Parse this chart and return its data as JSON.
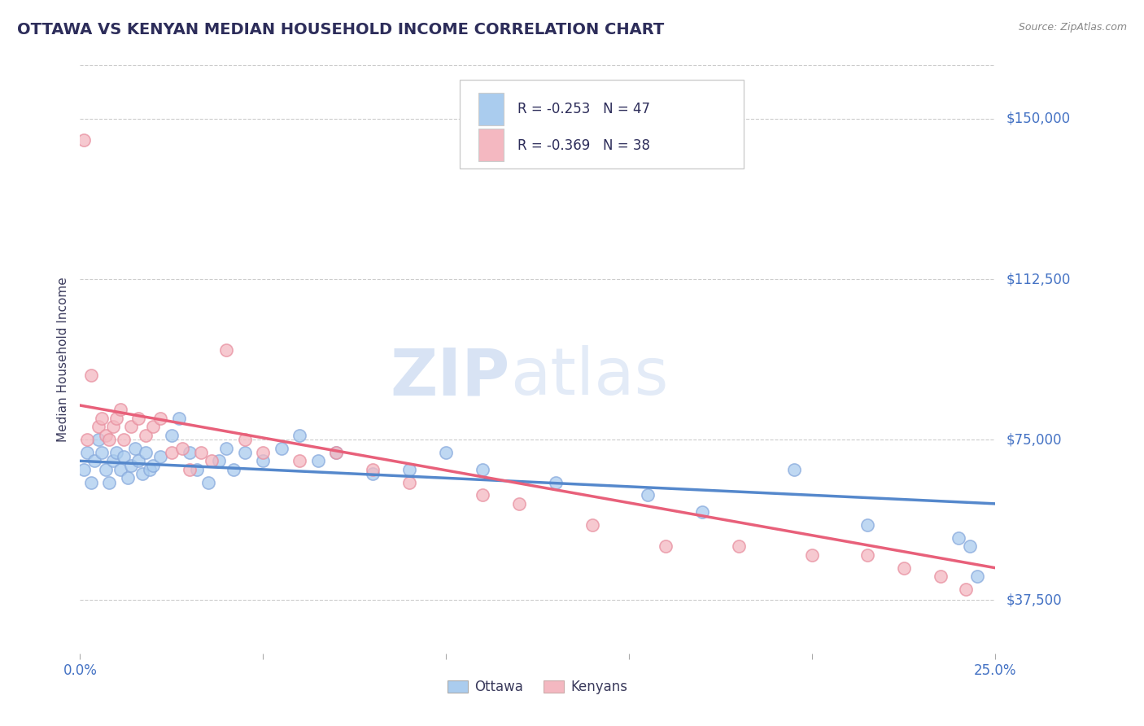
{
  "title": "OTTAWA VS KENYAN MEDIAN HOUSEHOLD INCOME CORRELATION CHART",
  "source": "Source: ZipAtlas.com",
  "ylabel": "Median Household Income",
  "xlim": [
    0.0,
    0.25
  ],
  "ylim": [
    25000,
    162500
  ],
  "ytick_positions": [
    37500,
    75000,
    112500,
    150000
  ],
  "ytick_labels": [
    "$37,500",
    "$75,000",
    "$112,500",
    "$150,000"
  ],
  "ottawa_color": "#aaccee",
  "ottawa_edge_color": "#88aadd",
  "kenyan_color": "#f4b8c1",
  "kenyan_edge_color": "#e890a0",
  "ottawa_line_color": "#5588cc",
  "kenyan_line_color": "#e8607a",
  "text_color": "#4472c4",
  "label_color": "#3a3a5c",
  "background_color": "#ffffff",
  "grid_color": "#cccccc",
  "legend_r_ottawa": "R = -0.253",
  "legend_n_ottawa": "N = 47",
  "legend_r_kenyan": "R = -0.369",
  "legend_n_kenyan": "N = 38",
  "ottawa_scatter_x": [
    0.001,
    0.002,
    0.003,
    0.004,
    0.005,
    0.006,
    0.007,
    0.008,
    0.009,
    0.01,
    0.011,
    0.012,
    0.013,
    0.014,
    0.015,
    0.016,
    0.017,
    0.018,
    0.019,
    0.02,
    0.022,
    0.025,
    0.027,
    0.03,
    0.032,
    0.035,
    0.038,
    0.04,
    0.042,
    0.045,
    0.05,
    0.055,
    0.06,
    0.065,
    0.07,
    0.08,
    0.09,
    0.1,
    0.11,
    0.13,
    0.155,
    0.17,
    0.195,
    0.215,
    0.24,
    0.243,
    0.245
  ],
  "ottawa_scatter_y": [
    68000,
    72000,
    65000,
    70000,
    75000,
    72000,
    68000,
    65000,
    70000,
    72000,
    68000,
    71000,
    66000,
    69000,
    73000,
    70000,
    67000,
    72000,
    68000,
    69000,
    71000,
    76000,
    80000,
    72000,
    68000,
    65000,
    70000,
    73000,
    68000,
    72000,
    70000,
    73000,
    76000,
    70000,
    72000,
    67000,
    68000,
    72000,
    68000,
    65000,
    62000,
    58000,
    68000,
    55000,
    52000,
    50000,
    43000
  ],
  "kenyan_scatter_x": [
    0.001,
    0.002,
    0.003,
    0.005,
    0.006,
    0.007,
    0.008,
    0.009,
    0.01,
    0.011,
    0.012,
    0.014,
    0.016,
    0.018,
    0.02,
    0.022,
    0.025,
    0.028,
    0.03,
    0.033,
    0.036,
    0.04,
    0.045,
    0.05,
    0.06,
    0.07,
    0.08,
    0.09,
    0.11,
    0.12,
    0.14,
    0.16,
    0.18,
    0.2,
    0.215,
    0.225,
    0.235,
    0.242
  ],
  "kenyan_scatter_y": [
    145000,
    75000,
    90000,
    78000,
    80000,
    76000,
    75000,
    78000,
    80000,
    82000,
    75000,
    78000,
    80000,
    76000,
    78000,
    80000,
    72000,
    73000,
    68000,
    72000,
    70000,
    96000,
    75000,
    72000,
    70000,
    72000,
    68000,
    65000,
    62000,
    60000,
    55000,
    50000,
    50000,
    48000,
    48000,
    45000,
    43000,
    40000
  ]
}
